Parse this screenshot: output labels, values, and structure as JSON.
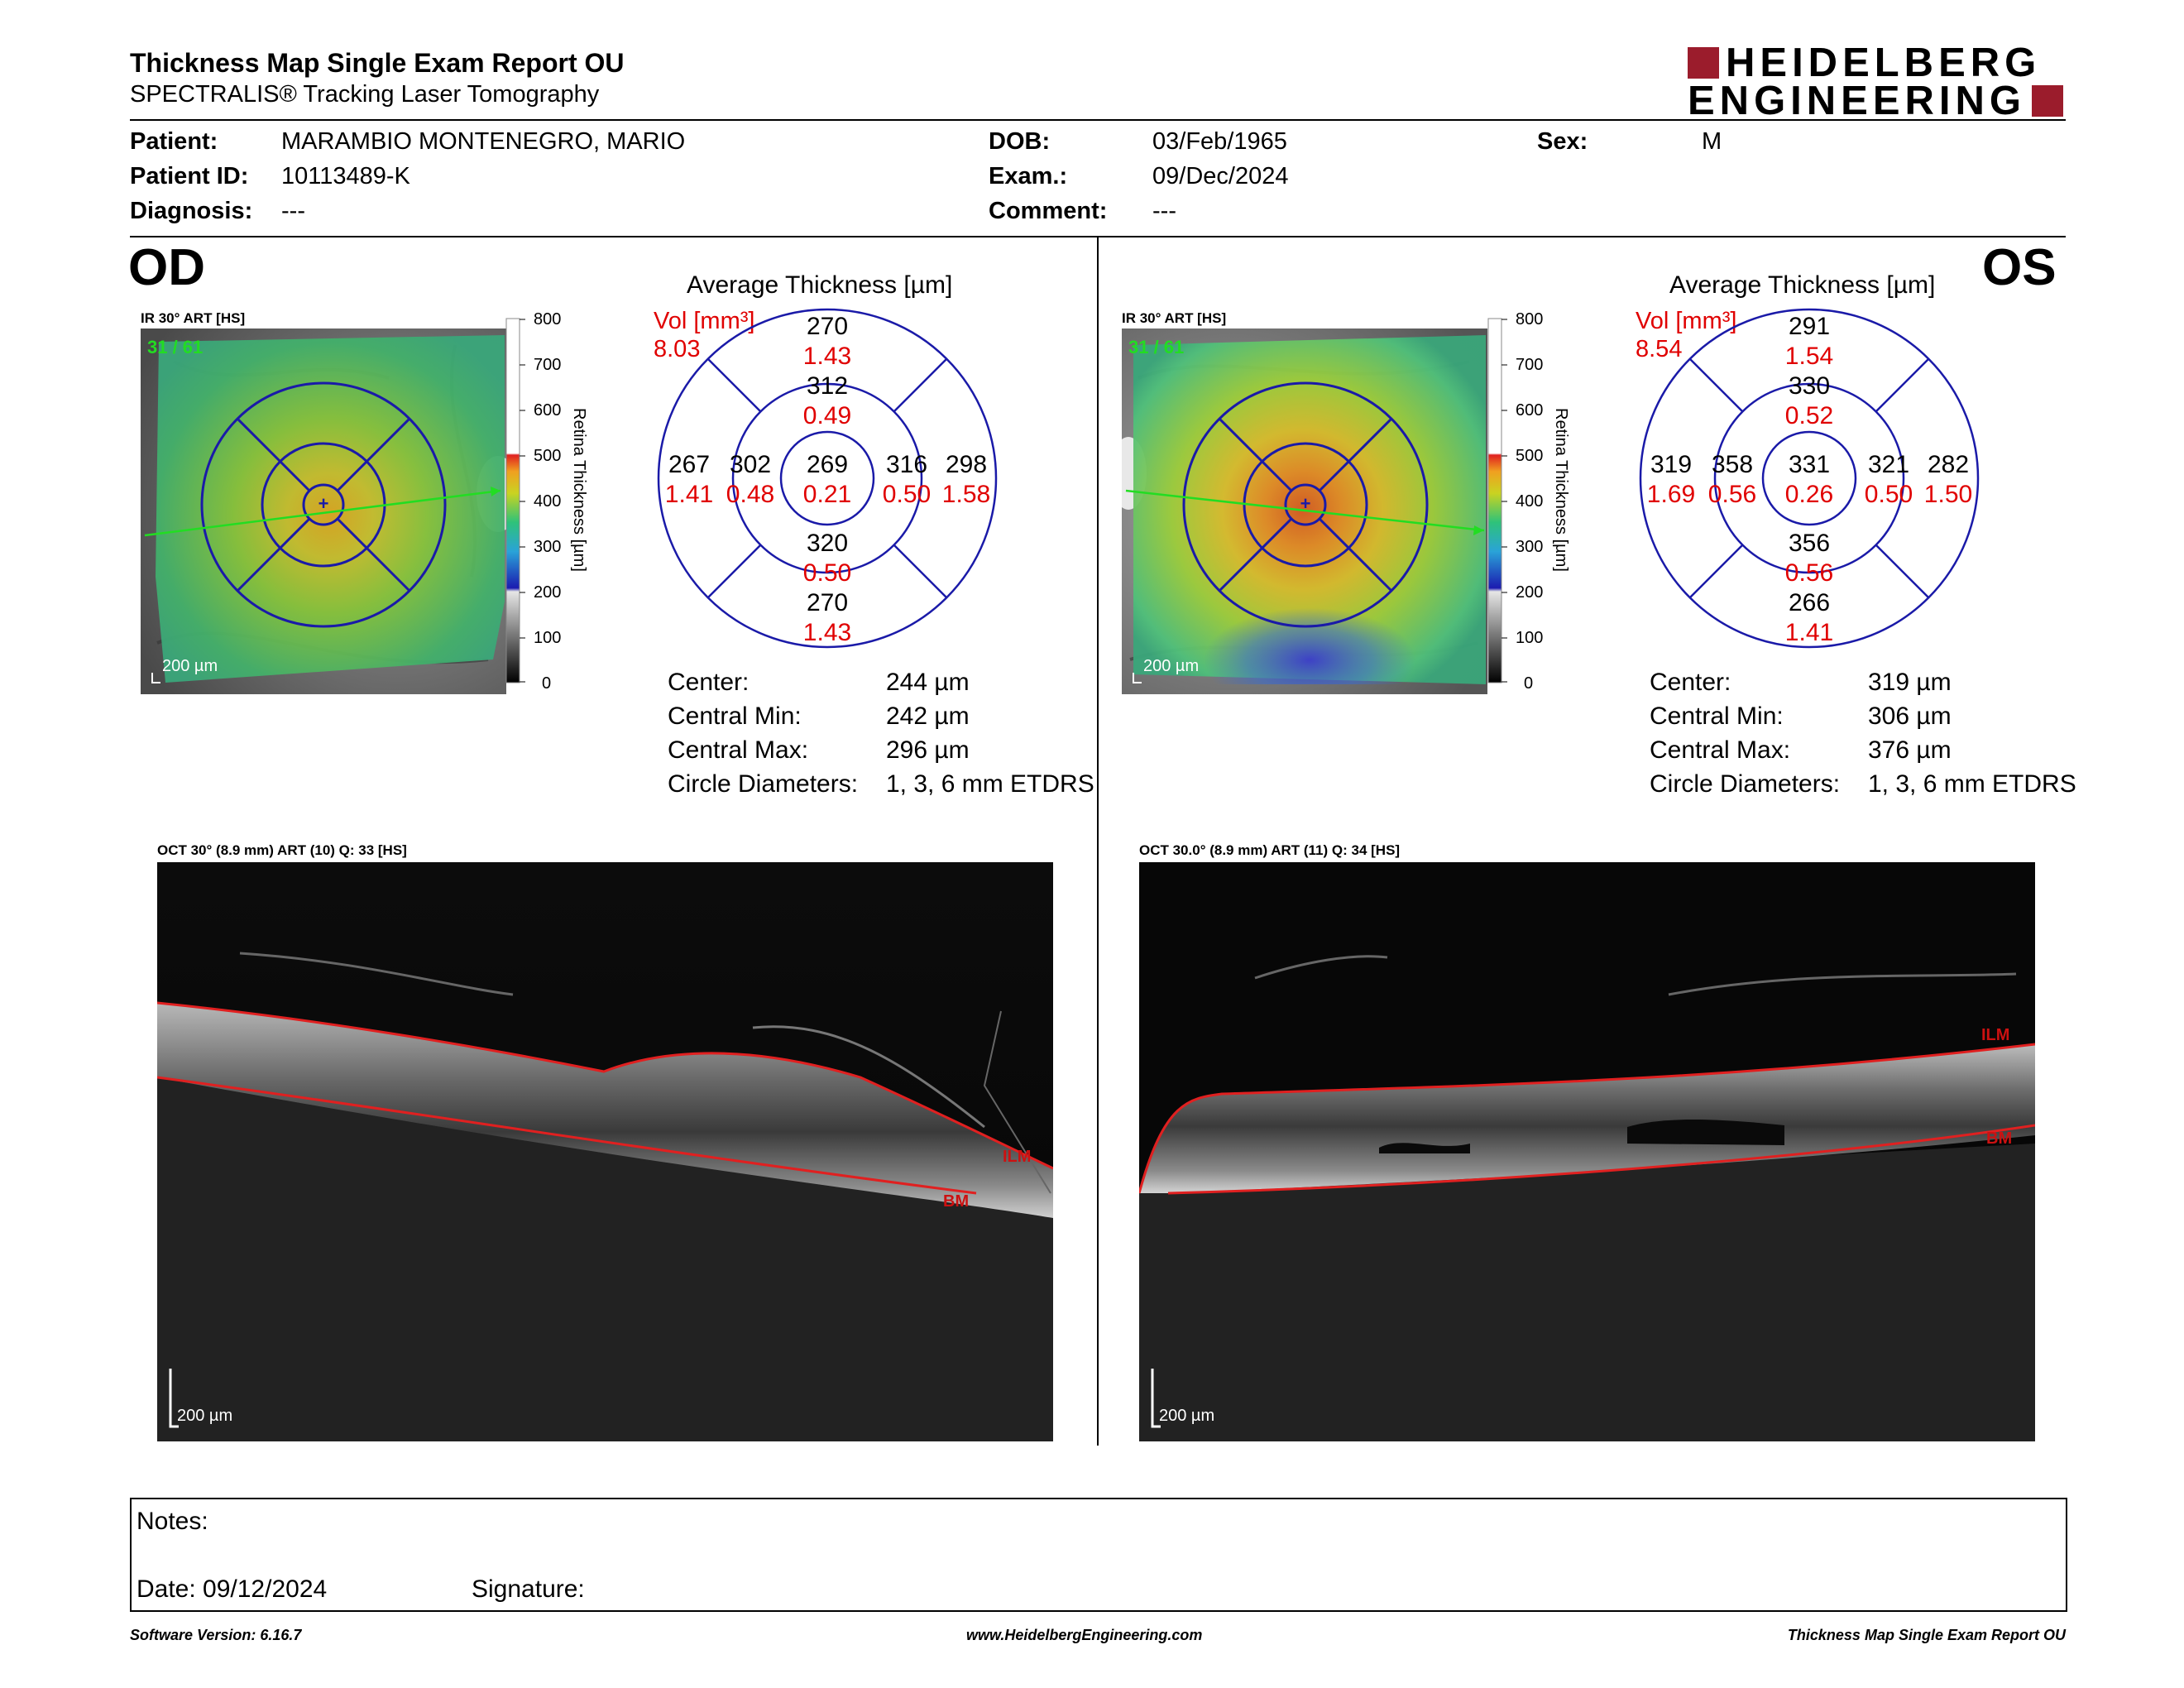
{
  "header": {
    "title": "Thickness Map Single Exam Report OU",
    "subtitle": "SPECTRALIS® Tracking Laser Tomography",
    "brand_line1": "HEIDELBERG",
    "brand_line2": "ENGINEERING",
    "brand_color": "#9b1c2c"
  },
  "patient": {
    "patient_label": "Patient:",
    "patient_value": "MARAMBIO MONTENEGRO, MARIO",
    "id_label": "Patient ID:",
    "id_value": "10113489-K",
    "diagnosis_label": "Diagnosis:",
    "diagnosis_value": "---",
    "dob_label": "DOB:",
    "dob_value": "03/Feb/1965",
    "exam_label": "Exam.:",
    "exam_value": "09/Dec/2024",
    "comment_label": "Comment:",
    "comment_value": "---",
    "sex_label": "Sex:",
    "sex_value": "M"
  },
  "od": {
    "eye_label": "OD",
    "ir_label": "IR 30° ART [HS]",
    "frame_counter": "31 / 61",
    "map_scale": "200 µm",
    "avg_title": "Average Thickness [µm]",
    "vol_label": "Vol [mm³]",
    "vol_total": "8.03",
    "sectors": {
      "outer_sup": [
        "270",
        "1.43"
      ],
      "inner_sup": [
        "312",
        "0.49"
      ],
      "outer_temp": [
        "267",
        "1.41"
      ],
      "inner_temp": [
        "302",
        "0.48"
      ],
      "center": [
        "269",
        "0.21"
      ],
      "inner_nasal": [
        "316",
        "0.50"
      ],
      "outer_nasal": [
        "298",
        "1.58"
      ],
      "inner_inf": [
        "320",
        "0.50"
      ],
      "outer_inf": [
        "270",
        "1.43"
      ]
    },
    "stats": [
      {
        "label": "Center:",
        "value": "244 µm"
      },
      {
        "label": "Central Min:",
        "value": "242 µm"
      },
      {
        "label": "Central Max:",
        "value": "296 µm"
      },
      {
        "label": "Circle Diameters:",
        "value": "1, 3, 6 mm ETDRS"
      }
    ],
    "oct_label": "OCT 30° (8.9 mm) ART (10) Q: 33 [HS]",
    "oct_scale": "200 µm",
    "ilm": "ILM",
    "bm": "BM"
  },
  "os": {
    "eye_label": "OS",
    "ir_label": "IR 30° ART [HS]",
    "frame_counter": "31 / 61",
    "map_scale": "200 µm",
    "avg_title": "Average Thickness [µm]",
    "vol_label": "Vol [mm³]",
    "vol_total": "8.54",
    "sectors": {
      "outer_sup": [
        "291",
        "1.54"
      ],
      "inner_sup": [
        "330",
        "0.52"
      ],
      "outer_temp": [
        "319",
        "1.69"
      ],
      "inner_temp": [
        "358",
        "0.56"
      ],
      "center": [
        "331",
        "0.26"
      ],
      "inner_nasal": [
        "321",
        "0.50"
      ],
      "outer_nasal": [
        "282",
        "1.50"
      ],
      "inner_inf": [
        "356",
        "0.56"
      ],
      "outer_inf": [
        "266",
        "1.41"
      ]
    },
    "stats": [
      {
        "label": "Center:",
        "value": "319 µm"
      },
      {
        "label": "Central Min:",
        "value": "306 µm"
      },
      {
        "label": "Central Max:",
        "value": "376 µm"
      },
      {
        "label": "Circle Diameters:",
        "value": "1, 3, 6 mm ETDRS"
      }
    ],
    "oct_label": "OCT 30.0° (8.9 mm) ART (11) Q: 34 [HS]",
    "oct_scale": "200 µm",
    "ilm": "ILM",
    "bm": "BM"
  },
  "colorbar": {
    "axis_label": "Retina  Thickness [µm]",
    "ticks": [
      "800",
      "700",
      "600",
      "500",
      "400",
      "300",
      "200",
      "100",
      "0"
    ]
  },
  "notes": {
    "notes_label": "Notes:",
    "date_label": "Date: 09/12/2024",
    "signature_label": "Signature:"
  },
  "footer": {
    "software": "Software Version: 6.16.7",
    "website": "www.HeidelbergEngineering.com",
    "report_name": "Thickness Map Single Exam Report OU"
  },
  "colors": {
    "volume_red": "#e00000",
    "grid_blue": "#1a1aa8",
    "segmentation_red": "#e02020"
  }
}
